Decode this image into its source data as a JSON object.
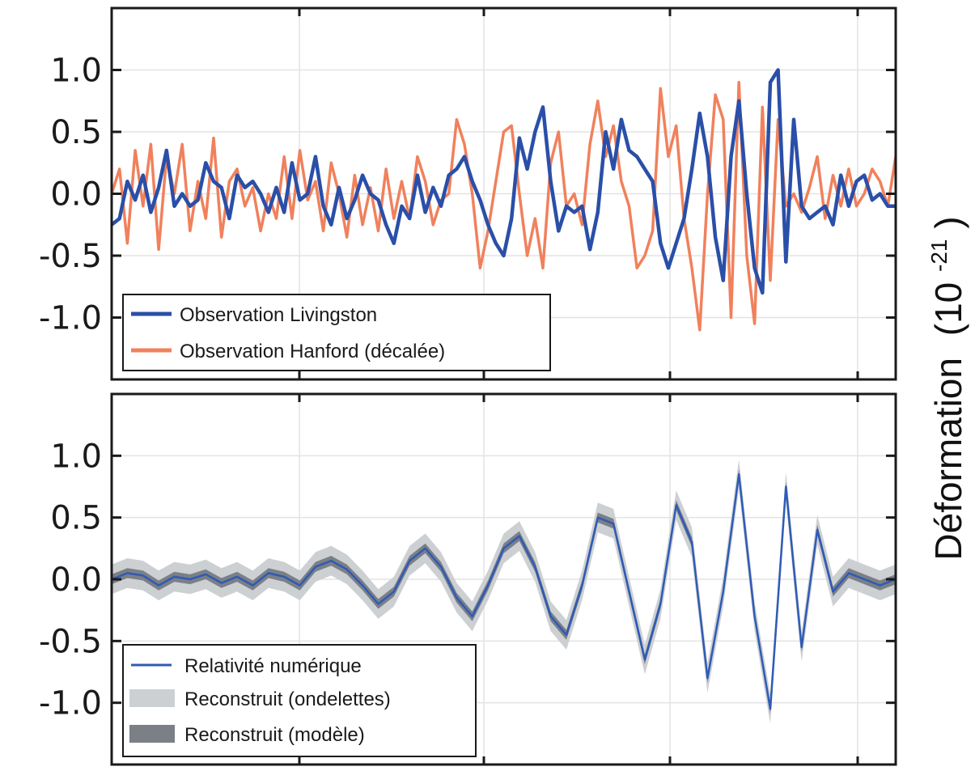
{
  "colors": {
    "livingston": "#2a4fa8",
    "hanford": "#f0815c",
    "nr": "#2f5bb5",
    "wavelet_band": "#cdd0d3",
    "template_band": "#7b7f86",
    "grid": "#e3e3e3",
    "axes": "#1a1a1a"
  },
  "ylabel": {
    "text": "Déformation",
    "unit_open": "(10",
    "unit_exp": "-21",
    "unit_close": ")"
  },
  "chart_data": [
    {
      "type": "line",
      "grid": true,
      "legend_position": "bottom-left",
      "ylim": [
        -1.5,
        1.5
      ],
      "yticks": [
        1.0,
        0.5,
        0.0,
        -0.5,
        -1.0
      ],
      "ytick_labels": [
        "1.0",
        "0.5",
        "0.0",
        "-0.5",
        "-1.0"
      ],
      "series": [
        {
          "name": "Observation Livingston",
          "x": [
            0,
            0.01,
            0.02,
            0.03,
            0.04,
            0.05,
            0.06,
            0.07,
            0.08,
            0.09,
            0.1,
            0.11,
            0.12,
            0.13,
            0.14,
            0.15,
            0.16,
            0.17,
            0.18,
            0.19,
            0.2,
            0.21,
            0.22,
            0.23,
            0.24,
            0.25,
            0.26,
            0.27,
            0.28,
            0.29,
            0.3,
            0.31,
            0.32,
            0.33,
            0.34,
            0.35,
            0.36,
            0.37,
            0.38,
            0.39,
            0.4,
            0.41,
            0.42,
            0.43,
            0.44,
            0.45,
            0.46,
            0.47,
            0.48,
            0.49,
            0.5,
            0.51,
            0.52,
            0.53,
            0.54,
            0.55,
            0.56,
            0.57,
            0.58,
            0.59,
            0.6,
            0.61,
            0.62,
            0.63,
            0.64,
            0.65,
            0.66,
            0.67,
            0.68,
            0.69,
            0.7,
            0.71,
            0.72,
            0.73,
            0.74,
            0.75,
            0.76,
            0.77,
            0.78,
            0.79,
            0.8,
            0.81,
            0.82,
            0.83,
            0.84,
            0.85,
            0.86,
            0.87,
            0.88,
            0.89,
            0.9,
            0.91,
            0.92,
            0.93,
            0.94,
            0.95,
            0.96,
            0.97,
            0.98,
            0.99,
            1.0
          ],
          "y": [
            -0.25,
            -0.2,
            0.1,
            -0.05,
            0.15,
            -0.15,
            0.05,
            0.35,
            -0.1,
            0.0,
            -0.1,
            -0.05,
            0.25,
            0.1,
            0.05,
            -0.2,
            0.15,
            0.05,
            0.1,
            0.0,
            -0.15,
            0.05,
            -0.15,
            0.25,
            -0.05,
            0.0,
            0.3,
            -0.1,
            -0.25,
            0.05,
            -0.2,
            -0.05,
            0.15,
            0.0,
            -0.05,
            -0.25,
            -0.4,
            -0.1,
            -0.2,
            0.15,
            -0.15,
            0.05,
            -0.1,
            0.15,
            0.2,
            0.3,
            0.1,
            -0.05,
            -0.25,
            -0.4,
            -0.5,
            -0.2,
            0.45,
            0.2,
            0.5,
            0.7,
            0.1,
            -0.3,
            -0.1,
            -0.15,
            -0.1,
            -0.45,
            -0.15,
            0.5,
            0.2,
            0.6,
            0.35,
            0.3,
            0.2,
            0.1,
            -0.4,
            -0.6,
            -0.4,
            -0.2,
            0.2,
            0.65,
            0.3,
            -0.35,
            -0.7,
            0.3,
            0.75,
            0.0,
            -0.6,
            -0.8,
            0.9,
            1.0,
            -0.55,
            0.6,
            -0.1,
            -0.2,
            -0.15,
            -0.1,
            -0.25,
            0.15,
            -0.1,
            0.1,
            0.15,
            -0.05,
            0.0,
            -0.1,
            -0.1
          ],
          "color": "#2a4fa8"
        },
        {
          "name": "Observation Hanford (décalée)",
          "x": [
            0,
            0.01,
            0.02,
            0.03,
            0.04,
            0.05,
            0.06,
            0.07,
            0.08,
            0.09,
            0.1,
            0.11,
            0.12,
            0.13,
            0.14,
            0.15,
            0.16,
            0.17,
            0.18,
            0.19,
            0.2,
            0.21,
            0.22,
            0.23,
            0.24,
            0.25,
            0.26,
            0.27,
            0.28,
            0.29,
            0.3,
            0.31,
            0.32,
            0.33,
            0.34,
            0.35,
            0.36,
            0.37,
            0.38,
            0.39,
            0.4,
            0.41,
            0.42,
            0.43,
            0.44,
            0.45,
            0.46,
            0.47,
            0.48,
            0.49,
            0.5,
            0.51,
            0.52,
            0.53,
            0.54,
            0.55,
            0.56,
            0.57,
            0.58,
            0.59,
            0.6,
            0.61,
            0.62,
            0.63,
            0.64,
            0.65,
            0.66,
            0.67,
            0.68,
            0.69,
            0.7,
            0.71,
            0.72,
            0.73,
            0.74,
            0.75,
            0.76,
            0.77,
            0.78,
            0.79,
            0.8,
            0.81,
            0.82,
            0.83,
            0.84,
            0.85,
            0.86,
            0.87,
            0.88,
            0.89,
            0.9,
            0.91,
            0.92,
            0.93,
            0.94,
            0.95,
            0.96,
            0.97,
            0.98,
            0.99,
            1.0
          ],
          "y": [
            0.0,
            0.2,
            -0.4,
            0.35,
            -0.1,
            0.4,
            -0.45,
            0.3,
            0.0,
            0.4,
            -0.3,
            0.1,
            -0.2,
            0.45,
            -0.35,
            0.1,
            0.2,
            -0.1,
            0.05,
            -0.3,
            0.0,
            -0.2,
            0.3,
            -0.2,
            0.35,
            -0.05,
            0.1,
            -0.3,
            0.25,
            0.0,
            -0.35,
            0.15,
            -0.25,
            0.05,
            -0.3,
            0.2,
            -0.2,
            0.1,
            -0.2,
            0.3,
            0.1,
            -0.25,
            -0.05,
            0.0,
            0.6,
            0.4,
            0.0,
            -0.6,
            -0.3,
            0.1,
            0.5,
            0.55,
            0.0,
            -0.5,
            -0.2,
            -0.6,
            0.25,
            0.5,
            -0.1,
            0.0,
            -0.25,
            0.4,
            0.75,
            0.3,
            0.55,
            0.1,
            -0.1,
            -0.6,
            -0.5,
            -0.3,
            0.85,
            0.3,
            0.55,
            -0.2,
            -0.6,
            -1.1,
            0.0,
            0.8,
            0.6,
            -1.0,
            0.9,
            -0.5,
            -1.05,
            0.7,
            -0.7,
            0.6,
            -0.1,
            0.0,
            -0.15,
            0.05,
            0.3,
            -0.2,
            0.15,
            -0.1,
            0.2,
            -0.1,
            0.0,
            0.2,
            0.1,
            -0.1,
            0.3
          ],
          "color": "#f0815c"
        }
      ]
    },
    {
      "type": "line",
      "grid": true,
      "legend_position": "bottom-left",
      "ylim": [
        -1.5,
        1.5
      ],
      "yticks": [
        1.0,
        0.5,
        0.0,
        -0.5,
        -1.0
      ],
      "ytick_labels": [
        "1.0",
        "0.5",
        "0.0",
        "-0.5",
        "-1.0"
      ],
      "series": [
        {
          "name": "Relativité numérique",
          "x": [
            0,
            0.02,
            0.04,
            0.06,
            0.08,
            0.1,
            0.12,
            0.14,
            0.16,
            0.18,
            0.2,
            0.22,
            0.24,
            0.26,
            0.28,
            0.3,
            0.32,
            0.34,
            0.36,
            0.38,
            0.4,
            0.42,
            0.44,
            0.46,
            0.48,
            0.5,
            0.52,
            0.54,
            0.56,
            0.58,
            0.6,
            0.62,
            0.64,
            0.66,
            0.68,
            0.7,
            0.72,
            0.74,
            0.76,
            0.78,
            0.8,
            0.82,
            0.84,
            0.86,
            0.88,
            0.9,
            0.92,
            0.94,
            0.96,
            0.98,
            1.0
          ],
          "y": [
            0.0,
            0.05,
            0.03,
            -0.05,
            0.02,
            0.0,
            0.04,
            -0.03,
            0.02,
            -0.05,
            0.05,
            0.02,
            -0.05,
            0.1,
            0.15,
            0.08,
            -0.05,
            -0.2,
            -0.1,
            0.15,
            0.25,
            0.1,
            -0.15,
            -0.3,
            -0.05,
            0.25,
            0.35,
            0.1,
            -0.3,
            -0.45,
            -0.05,
            0.5,
            0.45,
            -0.1,
            -0.65,
            -0.2,
            0.6,
            0.3,
            -0.8,
            -0.1,
            0.85,
            -0.3,
            -1.05,
            0.75,
            -0.55,
            0.4,
            -0.1,
            0.05,
            0.0,
            -0.05,
            0.0
          ],
          "color": "#2f5bb5"
        },
        {
          "name": "Reconstruit (ondelettes)",
          "band_halfwidth": 0.12,
          "color": "#cdd0d3"
        },
        {
          "name": "Reconstruit (modèle)",
          "band_halfwidth": 0.04,
          "color": "#7b7f86"
        }
      ]
    }
  ]
}
